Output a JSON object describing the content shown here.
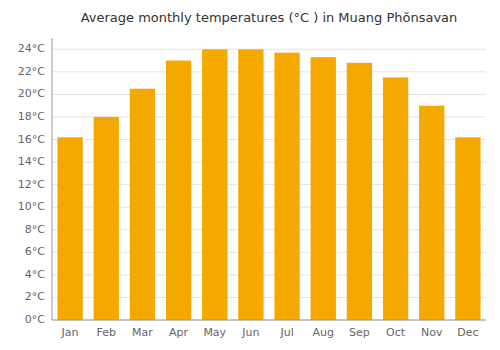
{
  "chart_data": {
    "type": "bar",
    "title": "Average monthly temperatures (°C ) in Muang Phŏnsavan",
    "categories": [
      "Jan",
      "Feb",
      "Mar",
      "Apr",
      "May",
      "Jun",
      "Jul",
      "Aug",
      "Sep",
      "Oct",
      "Nov",
      "Dec"
    ],
    "values": [
      16.2,
      18.0,
      20.5,
      23.0,
      24.0,
      24.0,
      23.7,
      23.3,
      22.8,
      21.5,
      19.0,
      16.2
    ],
    "color": "#F5A800",
    "ylim": [
      0,
      25
    ],
    "yticks": [
      {
        "value": 0,
        "label": "0°C"
      },
      {
        "value": 2,
        "label": "2°C"
      },
      {
        "value": 4,
        "label": "4°C"
      },
      {
        "value": 6,
        "label": "6°C"
      },
      {
        "value": 8,
        "label": "8°C"
      },
      {
        "value": 10,
        "label": "10°C"
      },
      {
        "value": 12,
        "label": "12°C"
      },
      {
        "value": 14,
        "label": "14°C"
      },
      {
        "value": 16,
        "label": "16°C"
      },
      {
        "value": 18,
        "label": "18°C"
      },
      {
        "value": 20,
        "label": "20°C"
      },
      {
        "value": 22,
        "label": "22°C"
      },
      {
        "value": 24,
        "label": "24°C"
      }
    ],
    "grid": true
  }
}
